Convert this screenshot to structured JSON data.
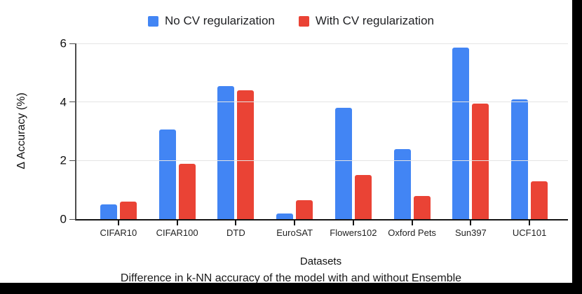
{
  "legend": {
    "items": [
      {
        "label": "No CV regularization",
        "color": "#4285F4"
      },
      {
        "label": "With CV regularization",
        "color": "#EA4335"
      }
    ]
  },
  "chart_data": {
    "type": "bar",
    "categories": [
      "CIFAR10",
      "CIFAR100",
      "DTD",
      "EuroSAT",
      "Flowers102",
      "Oxford Pets",
      "Sun397",
      "UCF101"
    ],
    "series": [
      {
        "name": "No CV regularization",
        "color": "#4285F4",
        "values": [
          0.5,
          3.05,
          4.55,
          0.2,
          3.8,
          2.4,
          5.85,
          4.1
        ]
      },
      {
        "name": "With CV regularization",
        "color": "#EA4335",
        "values": [
          0.6,
          1.9,
          4.4,
          0.65,
          1.5,
          0.8,
          3.95,
          1.3
        ]
      }
    ],
    "title": "",
    "xlabel": "Datasets",
    "ylabel": "Δ Accuracy (%)",
    "ylim": [
      0,
      6
    ],
    "yticks": [
      0,
      2,
      4,
      6
    ],
    "grid": true,
    "legend_position": "top"
  },
  "caption": "Difference in k-NN accuracy of the model with and without Ensemble",
  "colors": {
    "blue": "#4285F4",
    "red": "#EA4335",
    "gridline": "#e4e4e4",
    "axis": "#4d4d4d",
    "baseline": "#141414",
    "black_bar": "#000000"
  }
}
